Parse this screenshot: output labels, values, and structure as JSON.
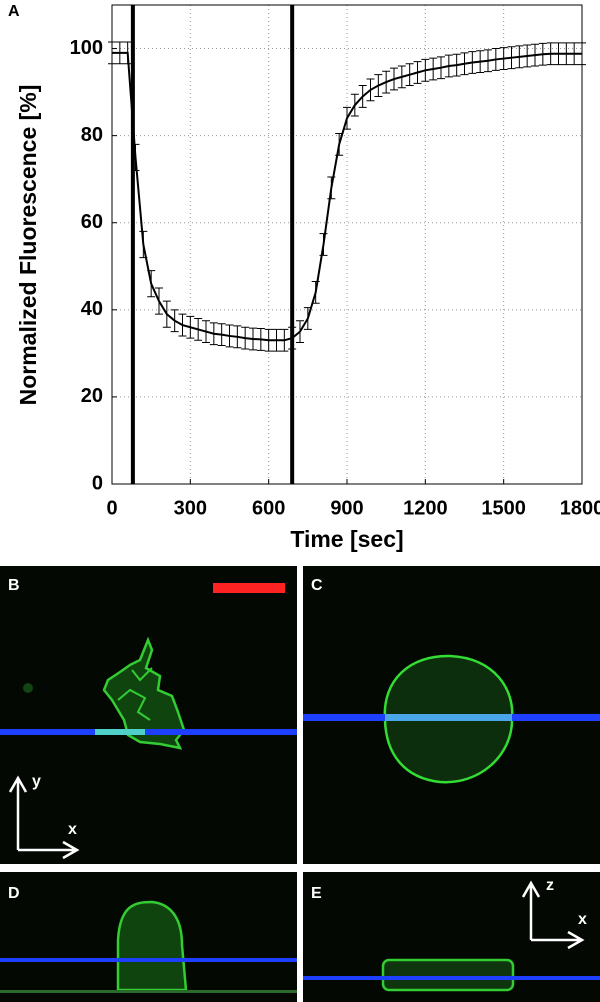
{
  "chart_data": {
    "type": "line",
    "panel_label": "A",
    "xlabel": "Time [sec]",
    "ylabel": "Normalized Fluorescence [%]",
    "x": [
      0,
      30,
      60,
      90,
      120,
      150,
      180,
      210,
      240,
      270,
      300,
      330,
      360,
      390,
      420,
      450,
      480,
      510,
      540,
      570,
      600,
      630,
      660,
      690,
      720,
      750,
      780,
      810,
      840,
      870,
      900,
      930,
      960,
      990,
      1020,
      1050,
      1080,
      1110,
      1140,
      1170,
      1200,
      1230,
      1260,
      1290,
      1320,
      1350,
      1380,
      1410,
      1440,
      1470,
      1500,
      1530,
      1560,
      1590,
      1620,
      1650,
      1680,
      1710,
      1740,
      1770,
      1800
    ],
    "values": [
      99,
      99,
      99,
      75,
      55,
      46,
      42,
      39,
      37.5,
      36.5,
      36,
      35.5,
      35,
      34.5,
      34.3,
      34,
      33.8,
      33.5,
      33.3,
      33.2,
      33,
      33,
      33,
      33.5,
      35,
      38,
      44,
      55,
      68,
      78,
      84,
      87,
      89,
      90.5,
      91.5,
      92.3,
      93,
      93.5,
      94,
      94.5,
      95,
      95.3,
      95.6,
      96,
      96.2,
      96.5,
      96.8,
      97,
      97.2,
      97.5,
      97.7,
      97.9,
      98.1,
      98.3,
      98.5,
      98.7,
      98.8,
      98.8,
      98.8,
      98.8,
      98.8
    ],
    "errors": [
      2.5,
      2.5,
      2.5,
      3,
      3,
      3,
      3,
      3,
      2.5,
      2.5,
      2.5,
      2.5,
      2.5,
      2.5,
      2.5,
      2.5,
      2.5,
      2.5,
      2.5,
      2.5,
      2.5,
      2.5,
      2.5,
      2.5,
      2.5,
      2.5,
      2.5,
      2.5,
      2.5,
      2.5,
      2.5,
      2.5,
      2.5,
      2.5,
      2.5,
      2.5,
      2.5,
      2.5,
      2.5,
      2.5,
      2.5,
      2.5,
      2.5,
      2.5,
      2.5,
      2.5,
      2.5,
      2.5,
      2.5,
      2.5,
      2.5,
      2.5,
      2.5,
      2.5,
      2.5,
      2.5,
      2.5,
      2.5,
      2.5,
      2.5,
      2.5
    ],
    "color": "#000000",
    "vlines": [
      80,
      690
    ],
    "xlim": [
      0,
      1800
    ],
    "xticks": [
      0,
      300,
      600,
      900,
      1200,
      1500,
      1800
    ],
    "ylim": [
      0,
      110
    ],
    "yticks": [
      0,
      20,
      40,
      60,
      80,
      100
    ],
    "grid": true
  },
  "panels": {
    "b": {
      "label": "B",
      "axis_y": "y",
      "axis_x": "x"
    },
    "c": {
      "label": "C"
    },
    "d": {
      "label": "D"
    },
    "e": {
      "label": "E",
      "axis_z": "z",
      "axis_x": "x"
    }
  }
}
